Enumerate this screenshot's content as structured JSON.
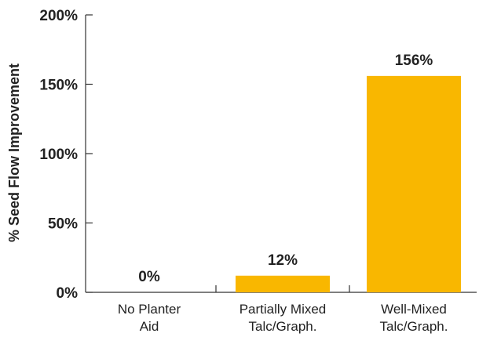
{
  "chart_data": {
    "type": "bar",
    "ylabel": "% Seed Flow Improvement",
    "xlabel": "",
    "ylim": [
      0,
      200
    ],
    "yticks": [
      {
        "value": 0,
        "label": "0%"
      },
      {
        "value": 50,
        "label": "50%"
      },
      {
        "value": 100,
        "label": "100%"
      },
      {
        "value": 150,
        "label": "150%"
      },
      {
        "value": 200,
        "label": "200%"
      }
    ],
    "categories": [
      [
        "No Planter",
        "Aid"
      ],
      [
        "Partially Mixed",
        "Talc/Graph."
      ],
      [
        "Well-Mixed",
        "Talc/Graph."
      ]
    ],
    "values": [
      0,
      12,
      156
    ],
    "data_labels": [
      "0%",
      "12%",
      "156%"
    ],
    "bar_color": "#F9B700",
    "axis_color": "#333333",
    "grid": false,
    "legend": "none"
  }
}
